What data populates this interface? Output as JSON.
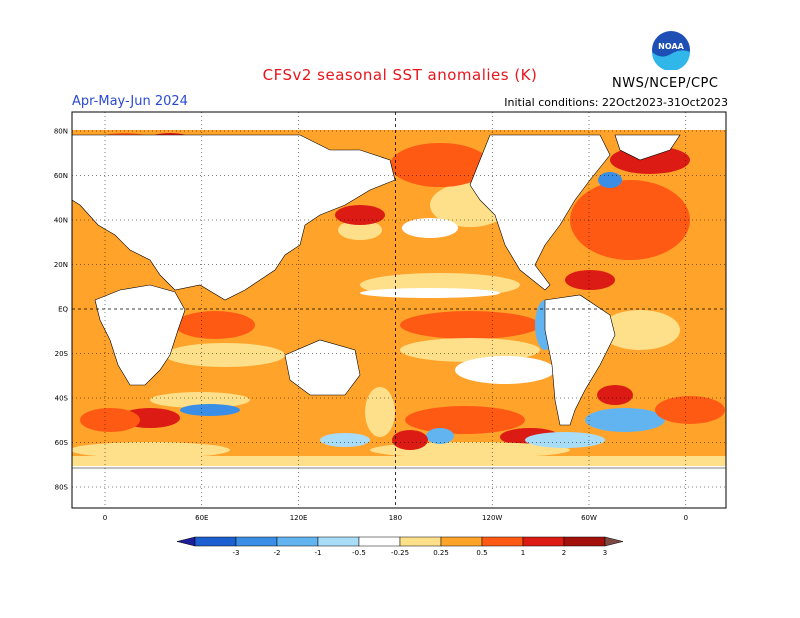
{
  "header": {
    "title": "CFSv2 seasonal SST anomalies (K)",
    "season": "Apr-May-Jun 2024",
    "initial_conditions": "Initial conditions: 22Oct2023-31Oct2023",
    "agency": "NWS/NCEP/CPC",
    "logo_text": "NOAA"
  },
  "map": {
    "lat_labels": [
      "80N",
      "60N",
      "40N",
      "20N",
      "EQ",
      "20S",
      "40S",
      "60S",
      "80S"
    ],
    "lon_labels": [
      "0",
      "60E",
      "120E",
      "180",
      "120W",
      "60W",
      "0"
    ]
  },
  "colorbar": {
    "labels": [
      "-3",
      "-2",
      "-1",
      "-0.5",
      "-0.25",
      "0.25",
      "0.5",
      "1",
      "2",
      "3"
    ],
    "colors": [
      "#1d1f9a",
      "#1b5fd1",
      "#3a8ee6",
      "#62b4f0",
      "#a9dcf7",
      "#ffffff",
      "#ffe08a",
      "#ffa32b",
      "#ff5a14",
      "#dc1c14",
      "#a3100c",
      "#7c4a42"
    ]
  },
  "colors": {
    "title": "#e8141b",
    "season": "#2b4ad1",
    "land": "#ffffff",
    "ocean_base": "#ffe08a"
  }
}
